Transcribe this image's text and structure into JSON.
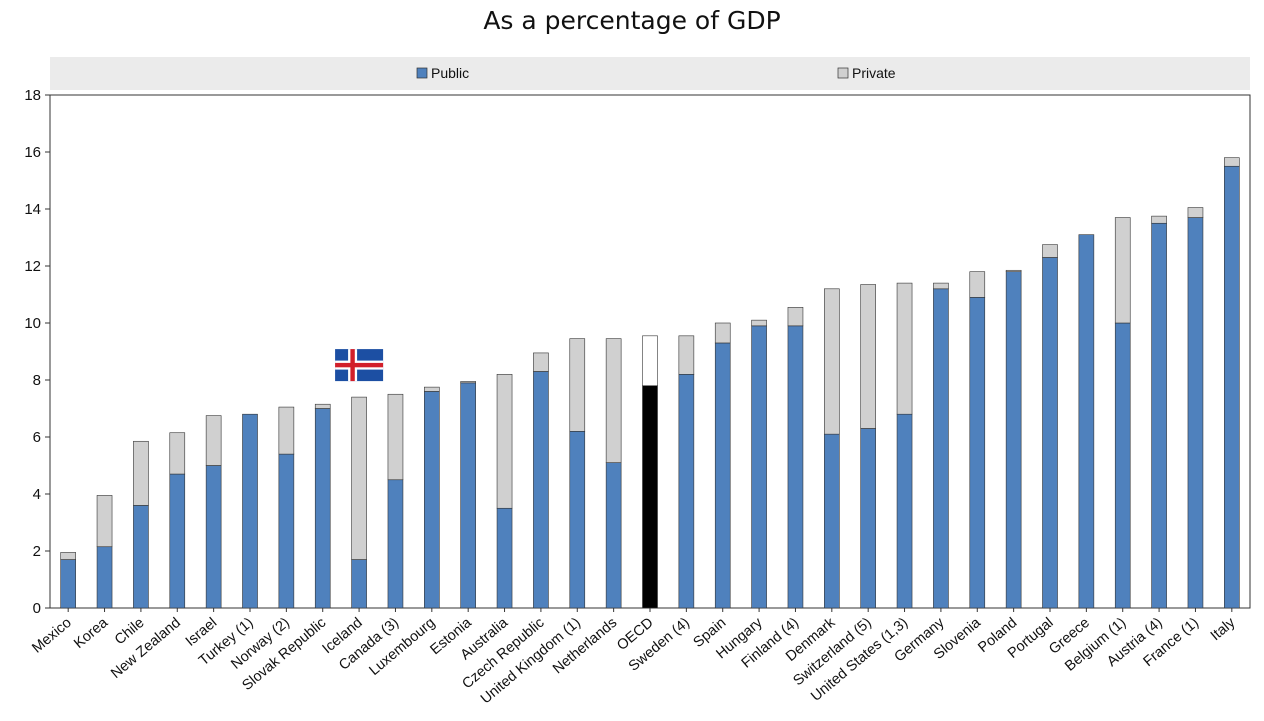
{
  "chart_data": {
    "type": "bar",
    "stacked": true,
    "title": "As a percentage of GDP",
    "xlabel": "",
    "ylabel": "",
    "ylim": [
      0,
      18
    ],
    "yticks": [
      0,
      2,
      4,
      6,
      8,
      10,
      12,
      14,
      16,
      18
    ],
    "grid": false,
    "legend_placement": "top-center",
    "categories": [
      "Mexico",
      "Korea",
      "Chile",
      "New Zealand",
      "Israel",
      "Turkey (1)",
      "Norway  (2)",
      "Slovak Republic",
      "Iceland",
      "Canada (3)",
      "Luxembourg",
      "Estonia",
      "Australia",
      "Czech Republic",
      "United Kingdom (1)",
      "Netherlands",
      "OECD",
      "Sweden (4)",
      "Spain",
      "Hungary",
      "Finland (4)",
      "Denmark",
      "Switzerland (5)",
      "United States (1,3)",
      "Germany",
      "Slovenia",
      "Poland",
      "Portugal",
      "Greece",
      "Belgium (1)",
      "Austria (4)",
      "France (1)",
      "Italy"
    ],
    "series": [
      {
        "name": "Public",
        "color": "#4f81bd",
        "values": [
          1.7,
          2.15,
          3.6,
          4.7,
          5.0,
          6.8,
          5.4,
          7.0,
          1.7,
          4.5,
          7.6,
          7.9,
          3.5,
          8.3,
          6.2,
          5.1,
          7.8,
          8.2,
          9.3,
          9.9,
          9.9,
          6.1,
          6.3,
          6.8,
          11.2,
          10.9,
          11.8,
          12.3,
          13.1,
          10.0,
          13.5,
          13.7,
          15.5
        ]
      },
      {
        "name": "Private",
        "color": "#d0d0d0",
        "values": [
          0.25,
          1.8,
          2.25,
          1.45,
          1.75,
          0.0,
          1.65,
          0.15,
          5.7,
          3.0,
          0.15,
          0.05,
          4.7,
          0.65,
          3.25,
          4.35,
          1.75,
          1.35,
          0.7,
          0.2,
          0.65,
          5.1,
          5.05,
          4.6,
          0.2,
          0.9,
          0.05,
          0.45,
          0.0,
          3.7,
          0.25,
          0.35,
          0.3
        ]
      }
    ],
    "highlight": {
      "category": "OECD",
      "public_color": "#000000",
      "private_color": "#ffffff"
    },
    "flag_marker": {
      "category": "Iceland",
      "icon": "iceland-flag-icon"
    }
  }
}
